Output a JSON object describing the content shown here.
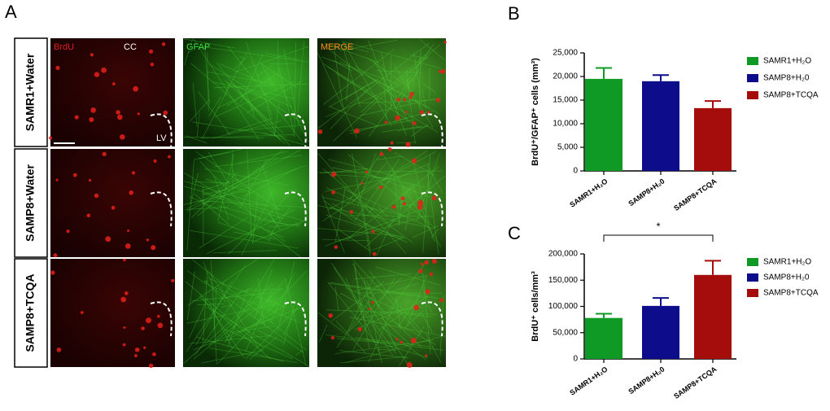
{
  "panel_a": {
    "letter": "A",
    "rows": [
      "SAMR1+Water",
      "SAMP8+Water",
      "SAMP8+TCQA"
    ],
    "columns": [
      "BrdU",
      "GFAP",
      "MERGE"
    ],
    "cc_label": "CC",
    "lv_label": "LV"
  },
  "chart_data": [
    {
      "type": "bar",
      "panel": "B",
      "ylabel": "BrdU⁺/GFAP⁺ cells (mm³)",
      "categories": [
        "SAMR1+H₂O",
        "SAMP8+H₂0",
        "SAMP8+TCQA"
      ],
      "series": [
        {
          "name": "SAMR1+H₂O",
          "color": "#0f9a25",
          "values": [
            19500,
            null,
            null
          ],
          "errors": [
            2300,
            null,
            null
          ]
        },
        {
          "name": "SAMP8+H₂0",
          "color": "#0d0d8c",
          "values": [
            null,
            19000,
            null
          ],
          "errors": [
            null,
            1300,
            null
          ]
        },
        {
          "name": "SAMP8+TCQA",
          "color": "#a50d0d",
          "values": [
            null,
            null,
            13300
          ],
          "errors": [
            null,
            null,
            1500
          ]
        }
      ],
      "ylim": [
        0,
        25000
      ],
      "yticks": [
        0,
        {
          "value": 5000,
          "label": "5,000"
        },
        {
          "value": 10000,
          "label": "10,000"
        },
        {
          "value": 15000,
          "label": "15,000"
        },
        {
          "value": 20000,
          "label": "20,000"
        },
        {
          "value": 25000,
          "label": "25,000"
        }
      ]
    },
    {
      "type": "bar",
      "panel": "C",
      "ylabel": "BrdU⁺ cells/mm³",
      "categories": [
        "SAMR1+H₂O",
        "SAMP8+H₂0",
        "SAMP8+TCQA"
      ],
      "series": [
        {
          "name": "SAMR1+H₂O",
          "color": "#0f9a25",
          "values": [
            78000,
            null,
            null
          ],
          "errors": [
            8000,
            null,
            null
          ]
        },
        {
          "name": "SAMP8+H₂0",
          "color": "#0d0d8c",
          "values": [
            null,
            101000,
            null
          ],
          "errors": [
            null,
            15000,
            null
          ]
        },
        {
          "name": "SAMP8+TCQA",
          "color": "#a50d0d",
          "values": [
            null,
            null,
            160000
          ],
          "errors": [
            null,
            null,
            27000
          ]
        }
      ],
      "ylim": [
        0,
        200000
      ],
      "yticks": [
        0,
        {
          "value": 50000,
          "label": "50,000"
        },
        {
          "value": 100000,
          "label": "100,000"
        },
        {
          "value": 150000,
          "label": "150,000"
        },
        {
          "value": 200000,
          "label": "200,000"
        }
      ],
      "annotation": "*"
    }
  ]
}
